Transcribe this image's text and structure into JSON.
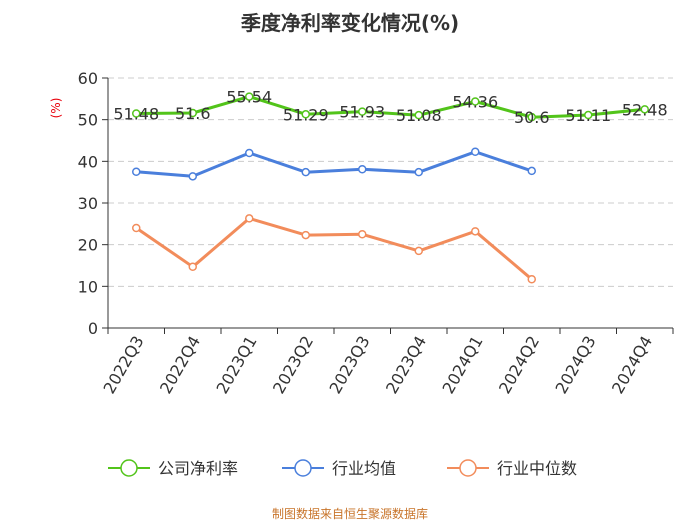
{
  "chart_data": {
    "type": "line",
    "title": "季度净利率变化情况(%)",
    "ylabel": "(%)",
    "xlabel": "",
    "ylim": [
      0,
      60
    ],
    "yticks": [
      0,
      10,
      20,
      30,
      40,
      50,
      60
    ],
    "grid": true,
    "legend_position": "bottom",
    "categories": [
      "2022Q3",
      "2022Q4",
      "2023Q1",
      "2023Q2",
      "2023Q3",
      "2023Q4",
      "2024Q1",
      "2024Q2",
      "2024Q3",
      "2024Q4"
    ],
    "series": [
      {
        "name": "公司净利率",
        "color": "#52c41a",
        "values": [
          51.48,
          51.6,
          55.54,
          51.29,
          51.93,
          51.08,
          54.36,
          50.6,
          51.11,
          52.48
        ],
        "labels": [
          "51.48",
          "51.6",
          "55.54",
          "51.29",
          "51.93",
          "51.08",
          "54.36",
          "50.6",
          "51.11",
          "52.48"
        ]
      },
      {
        "name": "行业均值",
        "color": "#4a7fdc",
        "values": [
          37.5,
          36.4,
          42.0,
          37.4,
          38.1,
          37.4,
          42.3,
          37.7,
          null,
          null
        ]
      },
      {
        "name": "行业中位数",
        "color": "#f28c5b",
        "values": [
          24.0,
          14.7,
          26.3,
          22.3,
          22.5,
          18.5,
          23.2,
          11.7,
          null,
          null
        ]
      }
    ]
  },
  "footer": {
    "source": "制图数据来自恒生聚源数据库"
  }
}
